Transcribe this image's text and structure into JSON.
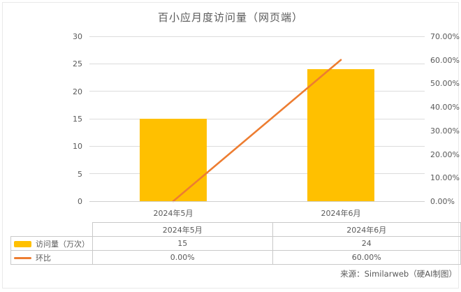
{
  "title": "百小应月度访问量（网页端）",
  "source_note": "来源：Similarweb（硬AI制图）",
  "colors": {
    "bar": "#FFC000",
    "line": "#ED7D31",
    "grid": "#dcdcdc",
    "text": "#595959",
    "table_border": "#c9c9c9"
  },
  "chart_data": {
    "type": "bar+line-combo",
    "title": "百小应月度访问量（网页端）",
    "categories": [
      "2024年5月",
      "2024年6月"
    ],
    "series": [
      {
        "name": "访问量（万次）",
        "type": "bar",
        "axis": "left",
        "values": [
          15,
          24
        ],
        "color": "#FFC000"
      },
      {
        "name": "环比",
        "type": "line",
        "axis": "right",
        "values": [
          0,
          60
        ],
        "value_labels": [
          "0.00%",
          "60.00%"
        ],
        "color": "#ED7D31"
      }
    ],
    "left_axis": {
      "min": 0,
      "max": 30,
      "step": 5,
      "ticks": [
        "0",
        "5",
        "10",
        "15",
        "20",
        "25",
        "30"
      ]
    },
    "right_axis": {
      "min": 0,
      "max": 70,
      "step": 10,
      "tick_labels": [
        "0.00%",
        "10.00%",
        "20.00%",
        "30.00%",
        "40.00%",
        "50.00%",
        "60.00%",
        "70.00%"
      ]
    },
    "grid": true,
    "legend_position": "bottom-table"
  },
  "table": {
    "header": [
      "",
      "2024年5月",
      "2024年6月"
    ],
    "rows": [
      {
        "swatch": "bar",
        "label": "访问量（万次）",
        "values": [
          "15",
          "24"
        ]
      },
      {
        "swatch": "line",
        "label": "环比",
        "values": [
          "0.00%",
          "60.00%"
        ]
      }
    ]
  }
}
